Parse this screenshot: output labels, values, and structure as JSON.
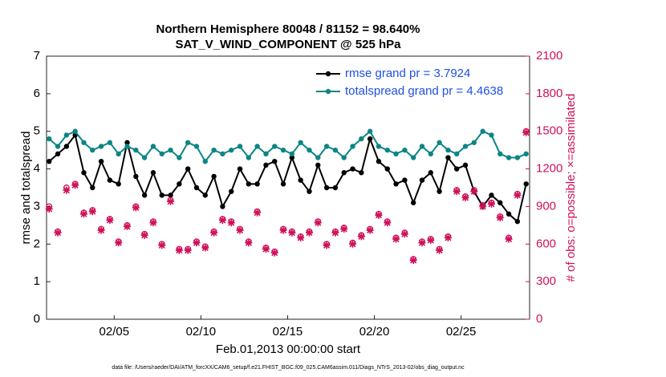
{
  "chart_data": {
    "type": "line",
    "title": "Northern Hemisphere 80048 / 81152 = 98.640%",
    "subtitle": "SAT_V_WIND_COMPONENT @ 525 hPa",
    "xlabel": "Feb.01,2013 00:00:00 start",
    "ylabel": "rmse and totalspread",
    "y2label": "# of obs: o=possible; ×=assimilated",
    "y2_color": "#d0105a",
    "footnote": "data file: /Users/raeder/DAI/ATM_forcXX/CAM6_setup/f.e21.FHIST_BGC.f09_025.CAM6assim.011/Diags_NTrS_2013-02/obs_diag_output.nc",
    "legend_position": "upper right",
    "legend_text_color": "#1f4fe0",
    "xlim": [
      1.1,
      28.95
    ],
    "xticks": [
      {
        "value": 5,
        "label": "02/05"
      },
      {
        "value": 10,
        "label": "02/10"
      },
      {
        "value": 15,
        "label": "02/15"
      },
      {
        "value": 20,
        "label": "02/20"
      },
      {
        "value": 25,
        "label": "02/25"
      }
    ],
    "ylim": [
      0,
      7
    ],
    "yticks": [
      0,
      1,
      2,
      3,
      4,
      5,
      6,
      7
    ],
    "y2lim": [
      0,
      2100
    ],
    "y2ticks": [
      0,
      300,
      600,
      900,
      1200,
      1500,
      1800,
      2100
    ],
    "x": [
      1.25,
      1.75,
      2.25,
      2.75,
      3.25,
      3.75,
      4.25,
      4.75,
      5.25,
      5.75,
      6.25,
      6.75,
      7.25,
      7.75,
      8.25,
      8.75,
      9.25,
      9.75,
      10.25,
      10.75,
      11.25,
      11.75,
      12.25,
      12.75,
      13.25,
      13.75,
      14.25,
      14.75,
      15.25,
      15.75,
      16.25,
      16.75,
      17.25,
      17.75,
      18.25,
      18.75,
      19.25,
      19.75,
      20.25,
      20.75,
      21.25,
      21.75,
      22.25,
      22.75,
      23.25,
      23.75,
      24.25,
      24.75,
      25.25,
      25.75,
      26.25,
      26.75,
      27.25,
      27.75,
      28.25,
      28.75
    ],
    "series": [
      {
        "name": "rmse grand pr = 3.7924",
        "color": "#000000",
        "marker": "dot",
        "line": true,
        "values": [
          4.2,
          4.4,
          4.6,
          4.9,
          3.9,
          3.5,
          4.2,
          3.7,
          3.6,
          4.7,
          3.8,
          3.3,
          3.9,
          3.3,
          3.3,
          3.6,
          4.0,
          3.5,
          3.3,
          3.8,
          3.0,
          3.4,
          4.0,
          3.6,
          3.6,
          4.1,
          4.2,
          3.6,
          4.3,
          3.7,
          3.4,
          4.1,
          3.5,
          3.5,
          3.9,
          4.0,
          3.9,
          4.8,
          4.2,
          4.0,
          3.6,
          3.7,
          3.1,
          3.7,
          3.9,
          3.4,
          4.3,
          4.0,
          4.1,
          3.4,
          3.0,
          3.3,
          3.1,
          2.8,
          2.6,
          3.6
        ]
      },
      {
        "name": "totalspread grand pr = 4.4638",
        "color": "#0e8585",
        "marker": "dot",
        "line": true,
        "values": [
          4.8,
          4.6,
          4.9,
          5.0,
          4.7,
          4.5,
          4.6,
          4.7,
          4.4,
          4.6,
          4.5,
          4.3,
          4.6,
          4.4,
          4.5,
          4.3,
          4.7,
          4.6,
          4.2,
          4.5,
          4.4,
          4.5,
          4.6,
          4.3,
          4.6,
          4.4,
          4.6,
          4.5,
          4.4,
          4.7,
          4.5,
          4.3,
          4.6,
          4.5,
          4.3,
          4.6,
          4.8,
          5.0,
          4.6,
          4.5,
          4.4,
          4.5,
          4.3,
          4.6,
          4.4,
          4.7,
          4.5,
          4.4,
          4.6,
          4.7,
          5.0,
          4.9,
          4.4,
          4.3,
          4.3,
          4.4
        ]
      },
      {
        "color": "#d0105a",
        "marker": "circle",
        "line": false,
        "axis": "y2",
        "values": [
          900,
          700,
          1050,
          1080,
          850,
          870,
          720,
          800,
          620,
          750,
          900,
          680,
          780,
          600,
          950,
          560,
          560,
          620,
          580,
          700,
          800,
          780,
          720,
          620,
          860,
          570,
          540,
          720,
          700,
          660,
          700,
          780,
          600,
          700,
          730,
          610,
          670,
          720,
          840,
          780,
          650,
          690,
          480,
          620,
          640,
          560,
          660,
          1030,
          980,
          1030,
          910,
          930,
          820,
          650,
          1000,
          1500
        ]
      },
      {
        "color": "#d0105a",
        "marker": "cross",
        "line": false,
        "axis": "y2",
        "values": [
          880,
          690,
          1030,
          1070,
          840,
          860,
          710,
          790,
          610,
          740,
          890,
          670,
          770,
          590,
          940,
          550,
          550,
          610,
          570,
          690,
          790,
          770,
          710,
          610,
          850,
          560,
          530,
          710,
          690,
          650,
          690,
          770,
          590,
          690,
          720,
          600,
          660,
          710,
          830,
          770,
          640,
          680,
          470,
          610,
          630,
          550,
          650,
          1020,
          970,
          1020,
          900,
          920,
          810,
          640,
          990,
          1490
        ]
      }
    ]
  }
}
